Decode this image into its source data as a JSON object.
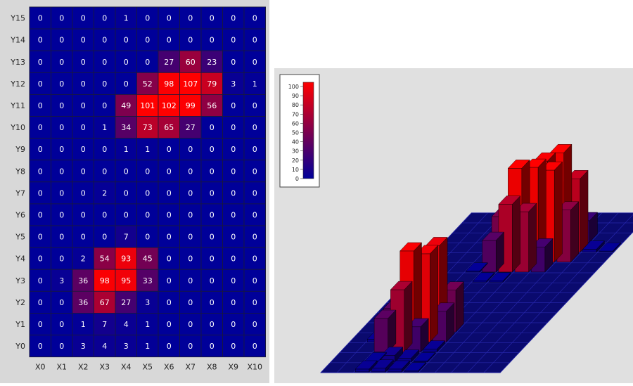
{
  "chart_data": [
    {
      "type": "heatmap",
      "x_labels": [
        "X0",
        "X1",
        "X2",
        "X3",
        "X4",
        "X5",
        "X6",
        "X7",
        "X8",
        "X9",
        "X10"
      ],
      "y_labels": [
        "Y15",
        "Y14",
        "Y13",
        "Y12",
        "Y11",
        "Y10",
        "Y9",
        "Y8",
        "Y7",
        "Y6",
        "Y5",
        "Y4",
        "Y3",
        "Y2",
        "Y1",
        "Y0"
      ],
      "values": [
        [
          0,
          0,
          0,
          0,
          1,
          0,
          0,
          0,
          0,
          0,
          0
        ],
        [
          0,
          0,
          0,
          0,
          0,
          0,
          0,
          0,
          0,
          0,
          0
        ],
        [
          0,
          0,
          0,
          0,
          0,
          0,
          27,
          60,
          23,
          0,
          0
        ],
        [
          0,
          0,
          0,
          0,
          0,
          52,
          98,
          107,
          79,
          3,
          1
        ],
        [
          0,
          0,
          0,
          0,
          49,
          101,
          102,
          99,
          56,
          0,
          0
        ],
        [
          0,
          0,
          0,
          1,
          34,
          73,
          65,
          27,
          0,
          0,
          0
        ],
        [
          0,
          0,
          0,
          0,
          1,
          1,
          0,
          0,
          0,
          0,
          0
        ],
        [
          0,
          0,
          0,
          0,
          0,
          0,
          0,
          0,
          0,
          0,
          0
        ],
        [
          0,
          0,
          0,
          2,
          0,
          0,
          0,
          0,
          0,
          0,
          0
        ],
        [
          0,
          0,
          0,
          0,
          0,
          0,
          0,
          0,
          0,
          0,
          0
        ],
        [
          0,
          0,
          0,
          0,
          7,
          0,
          0,
          0,
          0,
          0,
          0
        ],
        [
          0,
          0,
          2,
          54,
          93,
          45,
          0,
          0,
          0,
          0,
          0
        ],
        [
          0,
          3,
          36,
          98,
          95,
          33,
          0,
          0,
          0,
          0,
          0
        ],
        [
          0,
          0,
          36,
          67,
          27,
          3,
          0,
          0,
          0,
          0,
          0
        ],
        [
          0,
          0,
          1,
          7,
          4,
          1,
          0,
          0,
          0,
          0,
          0
        ],
        [
          0,
          0,
          3,
          4,
          3,
          1,
          0,
          0,
          0,
          0,
          0
        ]
      ],
      "color_min": "#000099",
      "color_max": "#ff0000",
      "grid": true
    },
    {
      "type": "bar",
      "subtype": "3d-bar",
      "same_data_as": "heatmap",
      "colorbar": {
        "ticks": [
          0,
          10,
          20,
          30,
          40,
          50,
          60,
          70,
          80,
          90,
          100
        ],
        "position": "top-left",
        "color_min": "#000099",
        "color_max": "#ff0000"
      }
    }
  ]
}
